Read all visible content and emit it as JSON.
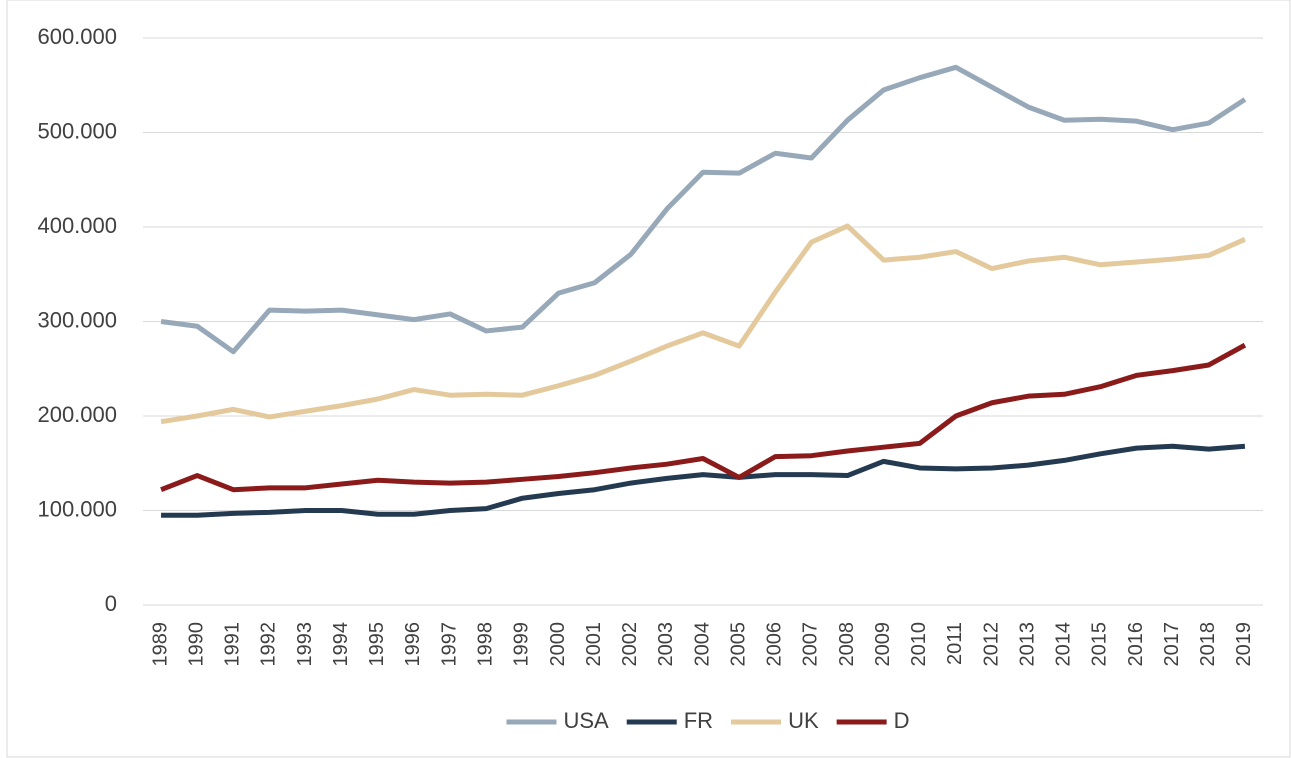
{
  "chart_data": {
    "type": "line",
    "categories": [
      "1989",
      "1990",
      "1991",
      "1992",
      "1993",
      "1994",
      "1995",
      "1996",
      "1997",
      "1998",
      "1999",
      "2000",
      "2001",
      "2002",
      "2003",
      "2004",
      "2005",
      "2006",
      "2007",
      "2008",
      "2009",
      "2010",
      "2011",
      "2012",
      "2013",
      "2014",
      "2015",
      "2016",
      "2017",
      "2018",
      "2019"
    ],
    "series": [
      {
        "name": "USA",
        "color": "#97a8b9",
        "values": [
          300000,
          295000,
          268000,
          312000,
          311000,
          312000,
          307000,
          302000,
          308000,
          290000,
          294000,
          330000,
          341000,
          371000,
          419000,
          458000,
          457000,
          478000,
          473000,
          513000,
          545000,
          558000,
          569000,
          548000,
          527000,
          513000,
          514000,
          512000,
          503000,
          510000,
          535000
        ]
      },
      {
        "name": "FR",
        "color": "#243a51",
        "values": [
          95000,
          95000,
          97000,
          98000,
          100000,
          100000,
          96000,
          96000,
          100000,
          102000,
          113000,
          118000,
          122000,
          129000,
          134000,
          138000,
          135000,
          138000,
          138000,
          137000,
          152000,
          145000,
          144000,
          145000,
          148000,
          153000,
          160000,
          166000,
          168000,
          165000,
          168000
        ]
      },
      {
        "name": "UK",
        "color": "#e3c99c",
        "values": [
          194000,
          200000,
          207000,
          199000,
          205000,
          211000,
          218000,
          228000,
          222000,
          223000,
          222000,
          232000,
          243000,
          258000,
          274000,
          288000,
          274000,
          331000,
          384000,
          401000,
          365000,
          368000,
          374000,
          356000,
          364000,
          368000,
          360000,
          363000,
          366000,
          370000,
          387000
        ]
      },
      {
        "name": "D",
        "color": "#8b1a1a",
        "values": [
          122000,
          137000,
          122000,
          124000,
          124000,
          128000,
          132000,
          130000,
          129000,
          130000,
          133000,
          136000,
          140000,
          145000,
          149000,
          155000,
          135000,
          157000,
          158000,
          163000,
          167000,
          171000,
          200000,
          214000,
          221000,
          223000,
          231000,
          243000,
          248000,
          254000,
          275000
        ]
      }
    ],
    "ylim": [
      0,
      600000
    ],
    "yticks": [
      0,
      {
        "value": 100000,
        "label": "100.000"
      },
      {
        "value": 200000,
        "label": "200.000"
      },
      {
        "value": 300000,
        "label": "300.000"
      },
      {
        "value": 400000,
        "label": "400.000"
      },
      {
        "value": 500000,
        "label": "500.000"
      },
      {
        "value": 600000,
        "label": "600.000"
      }
    ],
    "grid": true,
    "legend": "bottom"
  }
}
